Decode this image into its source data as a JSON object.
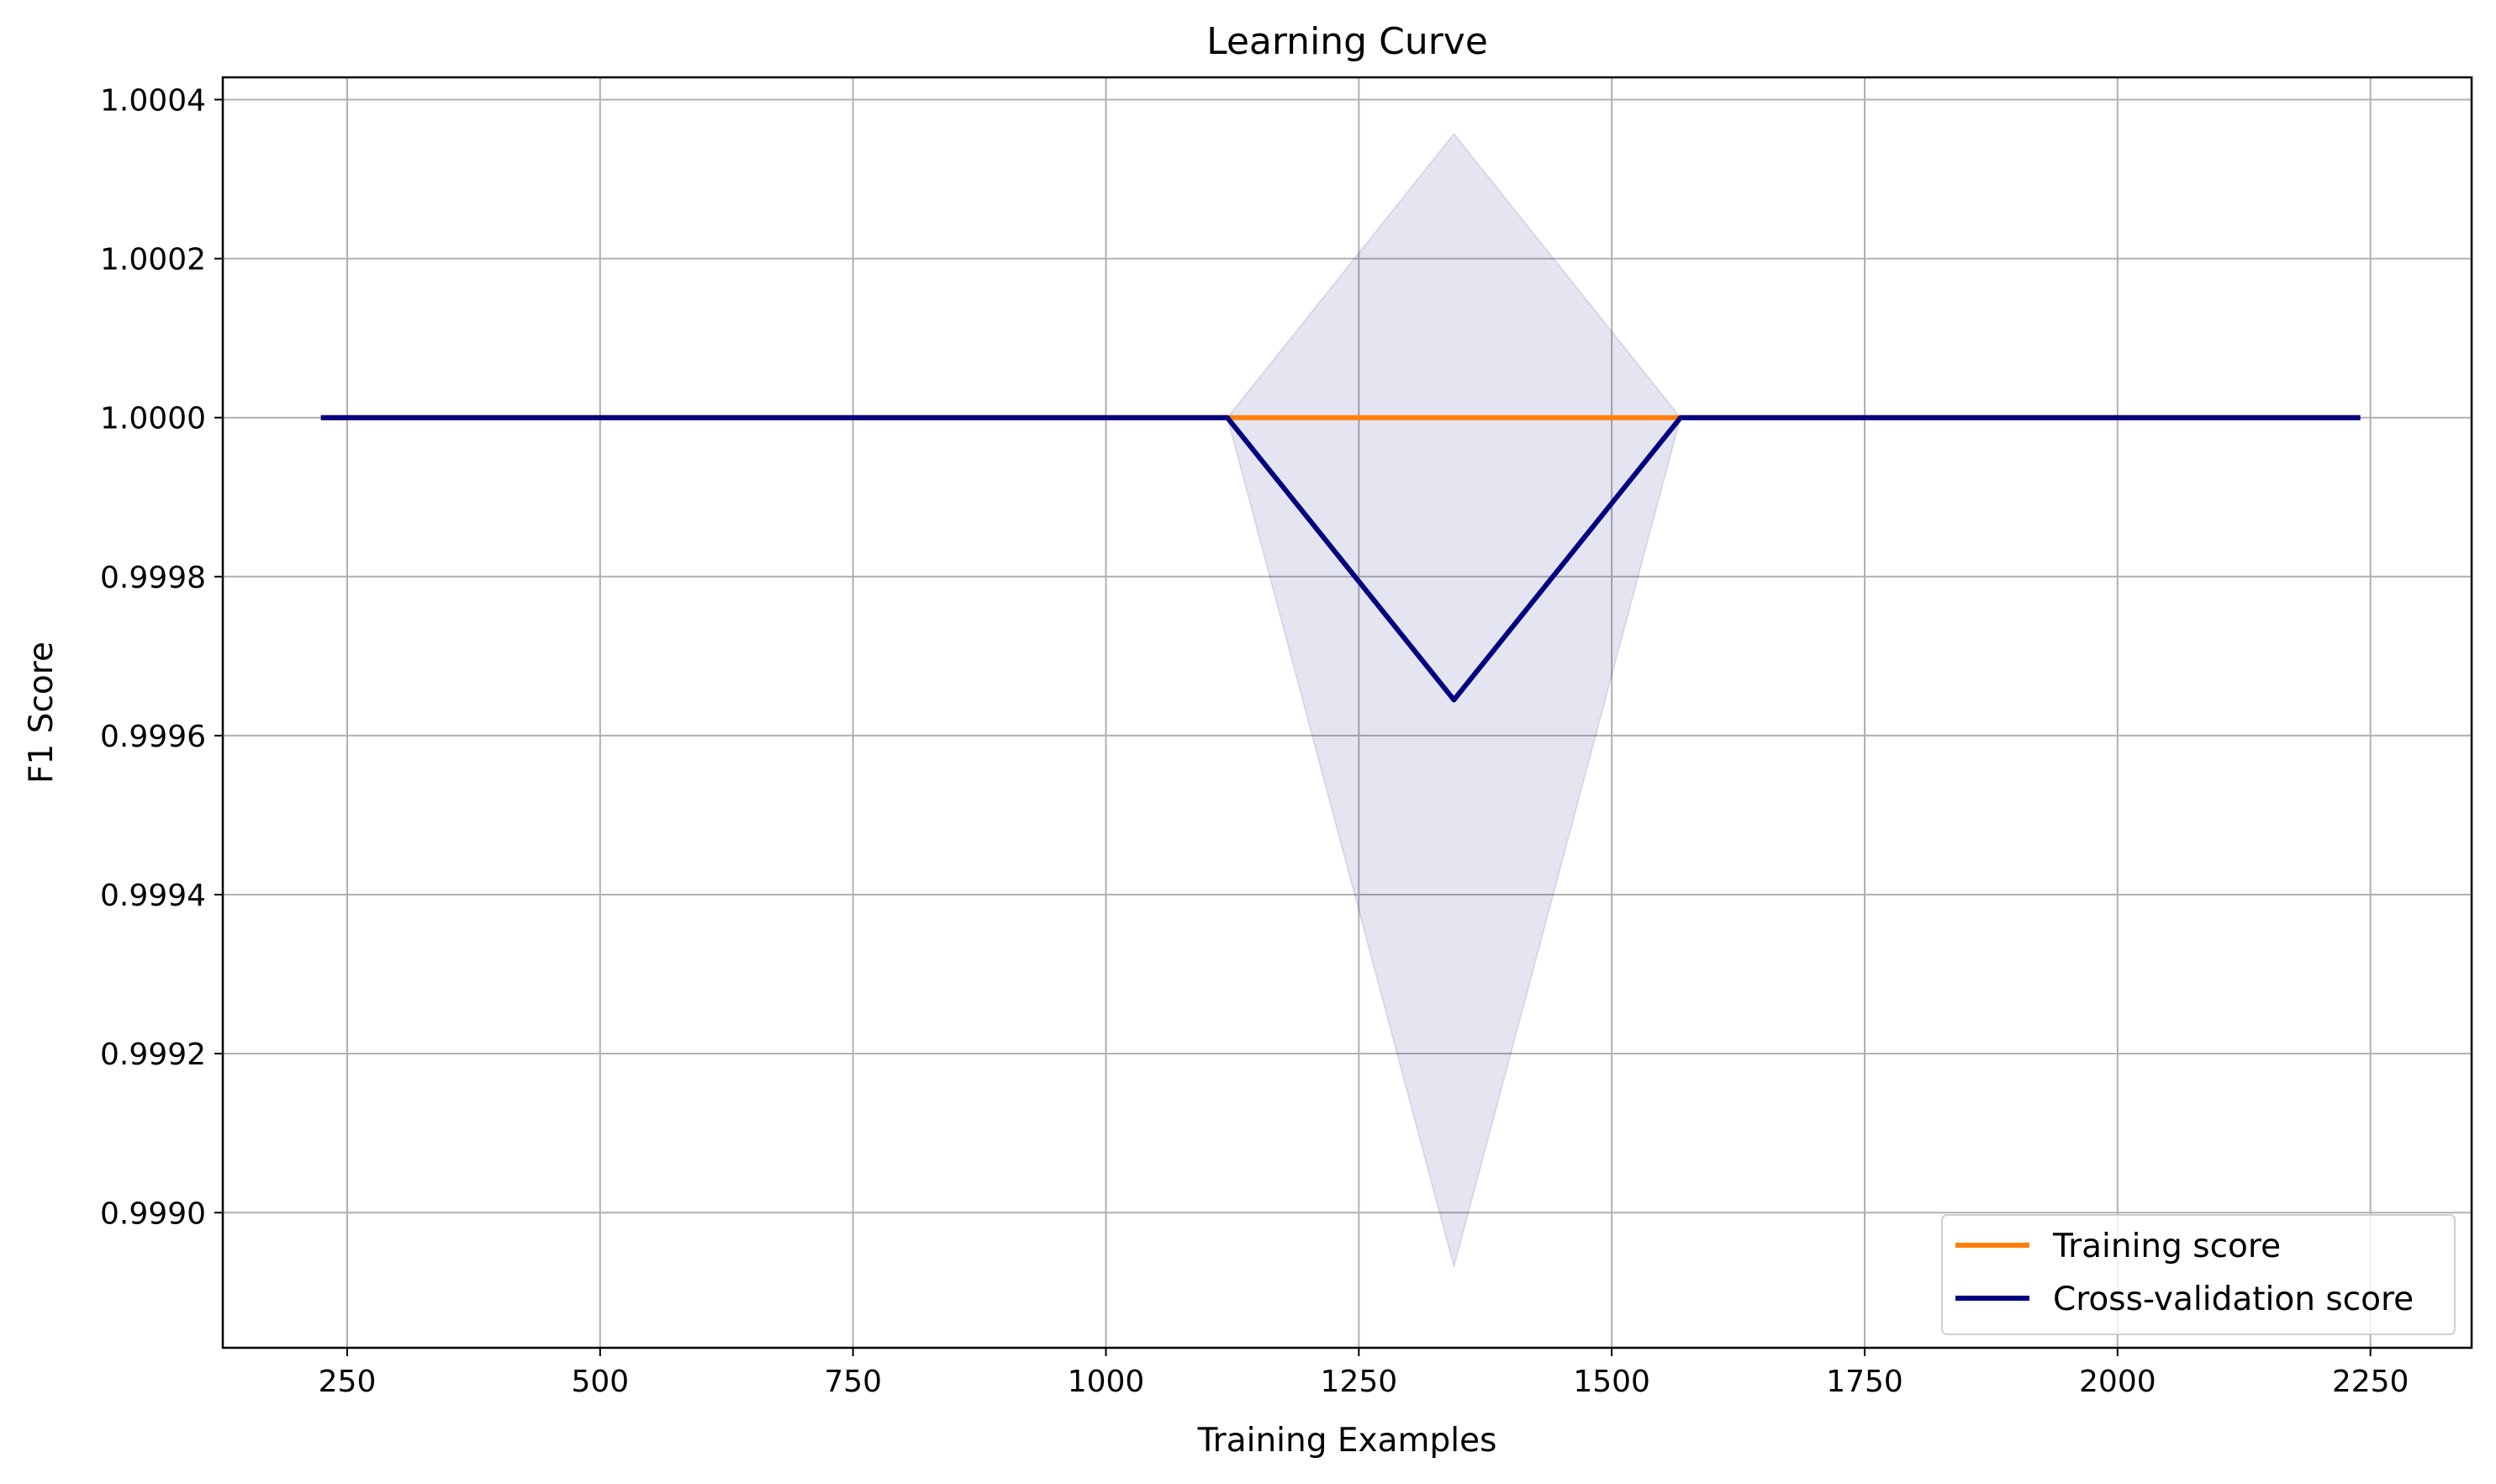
{
  "chart_data": {
    "type": "line",
    "title": "Learning Curve",
    "xlabel": "Training Examples",
    "ylabel": "F1 Score",
    "xlim": [
      127,
      2350
    ],
    "ylim": [
      0.99883,
      1.000428
    ],
    "grid": true,
    "legend_position": "lower-right",
    "x_ticks": [
      250,
      500,
      750,
      1000,
      1250,
      1500,
      1750,
      2000,
      2250
    ],
    "x_tick_labels": [
      "250",
      "500",
      "750",
      "1000",
      "1250",
      "1500",
      "1750",
      "2000",
      "2250"
    ],
    "y_ticks": [
      0.999,
      0.9992,
      0.9994,
      0.9996,
      0.9998,
      1.0,
      1.0002,
      1.0004
    ],
    "y_tick_labels": [
      "0.9990",
      "0.9992",
      "0.9994",
      "0.9996",
      "0.9998",
      "1.0000",
      "1.0002",
      "1.0004"
    ],
    "x": [
      224,
      448,
      672,
      896,
      1120,
      1344,
      1568,
      1792,
      2016,
      2240
    ],
    "series": [
      {
        "name": "Training score",
        "color": "#ff7f0e",
        "values": [
          1.0,
          1.0,
          1.0,
          1.0,
          1.0,
          1.0,
          1.0,
          1.0,
          1.0,
          1.0
        ]
      },
      {
        "name": "Cross-validation score",
        "color": "#000080",
        "values": [
          1.0,
          1.0,
          1.0,
          1.0,
          1.0,
          0.999645,
          1.0,
          1.0,
          1.0,
          1.0
        ],
        "band_lower": [
          1.0,
          1.0,
          1.0,
          1.0,
          1.0,
          0.998932,
          1.0,
          1.0,
          1.0,
          1.0
        ],
        "band_upper": [
          1.0,
          1.0,
          1.0,
          1.0,
          1.0,
          1.000357,
          1.0,
          1.0,
          1.0,
          1.0
        ],
        "band_color": "#000080"
      }
    ]
  }
}
